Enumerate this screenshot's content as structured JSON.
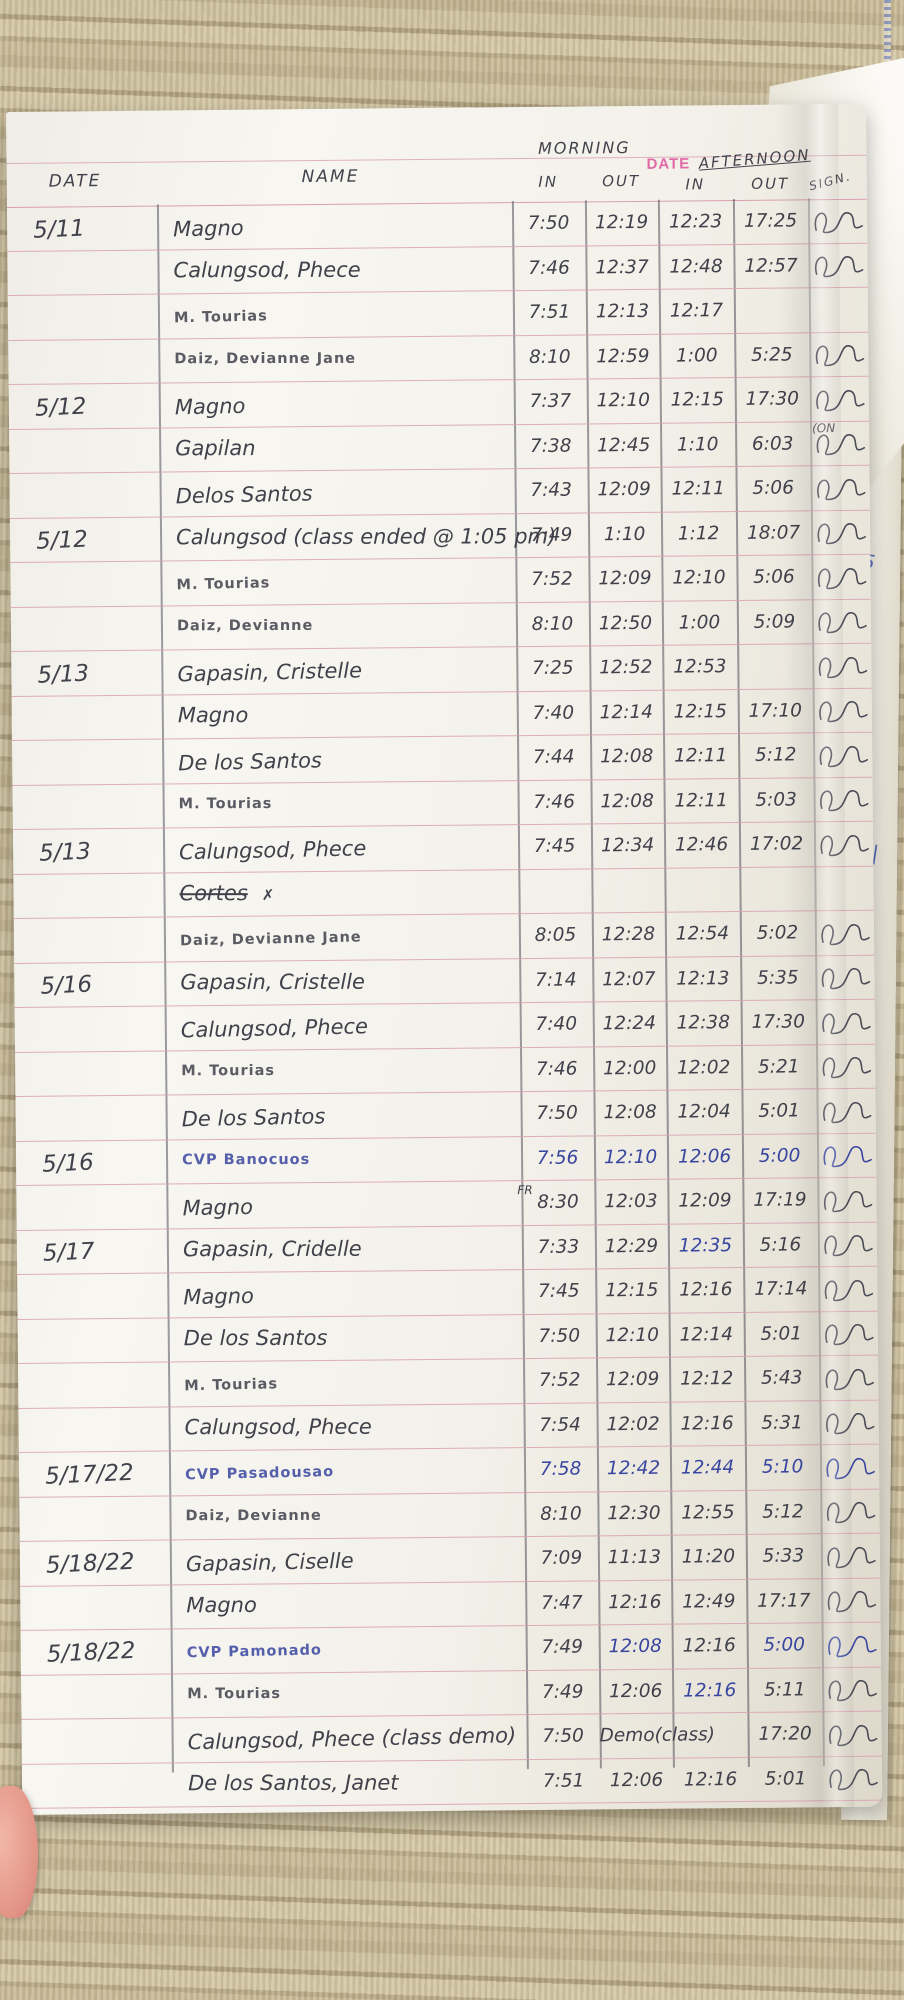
{
  "header": {
    "date": "DATE",
    "name": "NAME",
    "morning": "MORNING",
    "date_printed": "DATE",
    "afternoon": "AFTERNOON",
    "in_morning": "IN",
    "out_morning": "OUT",
    "in_afternoon": "IN",
    "out_afternoon": "OUT",
    "sign": "SIGN."
  },
  "colors": {
    "pencil": "#41414b",
    "blue_ink": "#3946a0",
    "rule_pink": "#d9a0b3",
    "printed_pink": "#e06aa8"
  },
  "side_marks": [
    "5",
    "5|",
    "5",
    "5|",
    "5|"
  ],
  "table": {
    "rows": [
      {
        "date": "5/11",
        "name": "Magno",
        "in1": "7:50",
        "out1": "12:19",
        "in2": "12:23",
        "out2": "17:25",
        "sign": true
      },
      {
        "name": "Calungsod, Phece",
        "in1": "7:46",
        "out1": "12:37",
        "in2": "12:48",
        "out2": "12:57",
        "sign": true
      },
      {
        "name": "M. Tourias",
        "caps": true,
        "in1": "7:51",
        "out1": "12:13",
        "in2": "12:17",
        "out2": "",
        "sign": false
      },
      {
        "name": "Daiz, Devianne Jane",
        "caps": true,
        "in1": "8:10",
        "out1": "12:59",
        "in2": "1:00",
        "out2": "5:25",
        "sign": true
      },
      {
        "date": "5/12",
        "name": "Magno",
        "in1": "7:37",
        "out1": "12:10",
        "in2": "12:15",
        "out2": "17:30",
        "sign": true
      },
      {
        "name": "Gapilan",
        "in1": "7:38",
        "out1": "12:45",
        "in2": "1:10",
        "out2": "6:03",
        "sign": true,
        "sign_note": "(ON"
      },
      {
        "name": "Delos Santos",
        "in1": "7:43",
        "out1": "12:09",
        "in2": "12:11",
        "out2": "5:06",
        "sign": true
      },
      {
        "date": "5/12",
        "name": "Calungsod (class ended @ 1:05 pm)",
        "in1": "7:49",
        "out1": "1:10",
        "in2": "1:12",
        "out2": "18:07",
        "sign": true
      },
      {
        "name": "M. Tourias",
        "caps": true,
        "in1": "7:52",
        "out1": "12:09",
        "in2": "12:10",
        "out2": "5:06",
        "sign": true
      },
      {
        "name": "Daiz, Devianne",
        "caps": true,
        "in1": "8:10",
        "out1": "12:50",
        "in2": "1:00",
        "out2": "5:09",
        "sign": true
      },
      {
        "date": "5/13",
        "name": "Gapasin, Cristelle",
        "in1": "7:25",
        "out1": "12:52",
        "in2": "12:53",
        "out2": "",
        "sign": true
      },
      {
        "name": "Magno",
        "in1": "7:40",
        "out1": "12:14",
        "in2": "12:15",
        "out2": "17:10",
        "sign": true
      },
      {
        "name": "De los Santos",
        "in1": "7:44",
        "out1": "12:08",
        "in2": "12:11",
        "out2": "5:12",
        "sign": true
      },
      {
        "name": "M. Tourias",
        "caps": true,
        "in1": "7:46",
        "out1": "12:08",
        "in2": "12:11",
        "out2": "5:03",
        "sign": true
      },
      {
        "date": "5/13",
        "name": "Calungsod, Phece",
        "in1": "7:45",
        "out1": "12:34",
        "in2": "12:46",
        "out2": "17:02",
        "sign": true
      },
      {
        "name": "Cortes",
        "strike": true,
        "suffix": "✗",
        "in1": "",
        "out1": "",
        "in2": "",
        "out2": "",
        "sign": false
      },
      {
        "name": "Daiz, Devianne Jane",
        "caps": true,
        "in1": "8:05",
        "out1": "12:28",
        "in2": "12:54",
        "out2": "5:02",
        "sign": true
      },
      {
        "date": "5/16",
        "name": "Gapasin, Cristelle",
        "in1": "7:14",
        "out1": "12:07",
        "in2": "12:13",
        "out2": "5:35",
        "sign": true
      },
      {
        "name": "Calungsod, Phece",
        "in1": "7:40",
        "out1": "12:24",
        "in2": "12:38",
        "out2": "17:30",
        "sign": true
      },
      {
        "name": "M. Tourias",
        "caps": true,
        "in1": "7:46",
        "out1": "12:00",
        "in2": "12:02",
        "out2": "5:21",
        "sign": true
      },
      {
        "name": "De los Santos",
        "in1": "7:50",
        "out1": "12:08",
        "in2": "12:04",
        "out2": "5:01",
        "sign": true
      },
      {
        "date": "5/16",
        "name": "CVP Banocuos",
        "caps": true,
        "blue": [
          "name",
          "in1",
          "out1",
          "in2",
          "out2",
          "sign"
        ],
        "in1": "7:56",
        "out1": "12:10",
        "in2": "12:06",
        "out2": "5:00",
        "sign": true
      },
      {
        "name": "Magno",
        "note": "FR",
        "in1": "8:30",
        "out1": "12:03",
        "in2": "12:09",
        "out2": "17:19",
        "sign": true
      },
      {
        "date": "5/17",
        "name": "Gapasin, Cridelle",
        "blue": [
          "in2"
        ],
        "in1": "7:33",
        "out1": "12:29",
        "in2": "12:35",
        "out2": "5:16",
        "sign": true
      },
      {
        "name": "Magno",
        "in1": "7:45",
        "out1": "12:15",
        "in2": "12:16",
        "out2": "17:14",
        "sign": true
      },
      {
        "name": "De los Santos",
        "in1": "7:50",
        "out1": "12:10",
        "in2": "12:14",
        "out2": "5:01",
        "sign": true
      },
      {
        "name": "M. Tourias",
        "caps": true,
        "in1": "7:52",
        "out1": "12:09",
        "in2": "12:12",
        "out2": "5:43",
        "sign": true
      },
      {
        "name": "Calungsod, Phece",
        "in1": "7:54",
        "out1": "12:02",
        "in2": "12:16",
        "out2": "5:31",
        "sign": true
      },
      {
        "date": "5/17/22",
        "name": "CVP Pasadousao",
        "caps": true,
        "blue": [
          "name",
          "in1",
          "out1",
          "in2",
          "out2",
          "sign"
        ],
        "in1": "7:58",
        "out1": "12:42",
        "in2": "12:44",
        "out2": "5:10",
        "sign": true
      },
      {
        "name": "Daiz, Devianne",
        "caps": true,
        "in1": "8:10",
        "out1": "12:30",
        "in2": "12:55",
        "out2": "5:12",
        "sign": true
      },
      {
        "date": "5/18/22",
        "name": "Gapasin, Ciselle",
        "in1": "7:09",
        "out1": "11:13",
        "in2": "11:20",
        "out2": "5:33",
        "sign": true
      },
      {
        "name": "Magno",
        "in1": "7:47",
        "out1": "12:16",
        "in2": "12:49",
        "out2": "17:17",
        "sign": true
      },
      {
        "date": "5/18/22",
        "name": "CVP Pamonado",
        "caps": true,
        "blue": [
          "name",
          "out1",
          "out2",
          "sign"
        ],
        "in1": "7:49",
        "out1": "12:08",
        "in2": "12:16",
        "out2": "5:00",
        "sign": true
      },
      {
        "name": "M. Tourias",
        "caps": true,
        "blue": [
          "in2"
        ],
        "in1": "7:49",
        "out1": "12:06",
        "in2": "12:16",
        "out2": "5:11",
        "sign": true
      },
      {
        "name": "Calungsod, Phece (class demo)",
        "in1": "7:50",
        "out1": "Demo(class)",
        "in2": "",
        "out2": "17:20",
        "sign": true
      },
      {
        "name": "De los Santos, Janet",
        "in1": "7:51",
        "out1": "12:06",
        "in2": "12:16",
        "out2": "5:01",
        "sign": true
      }
    ]
  }
}
